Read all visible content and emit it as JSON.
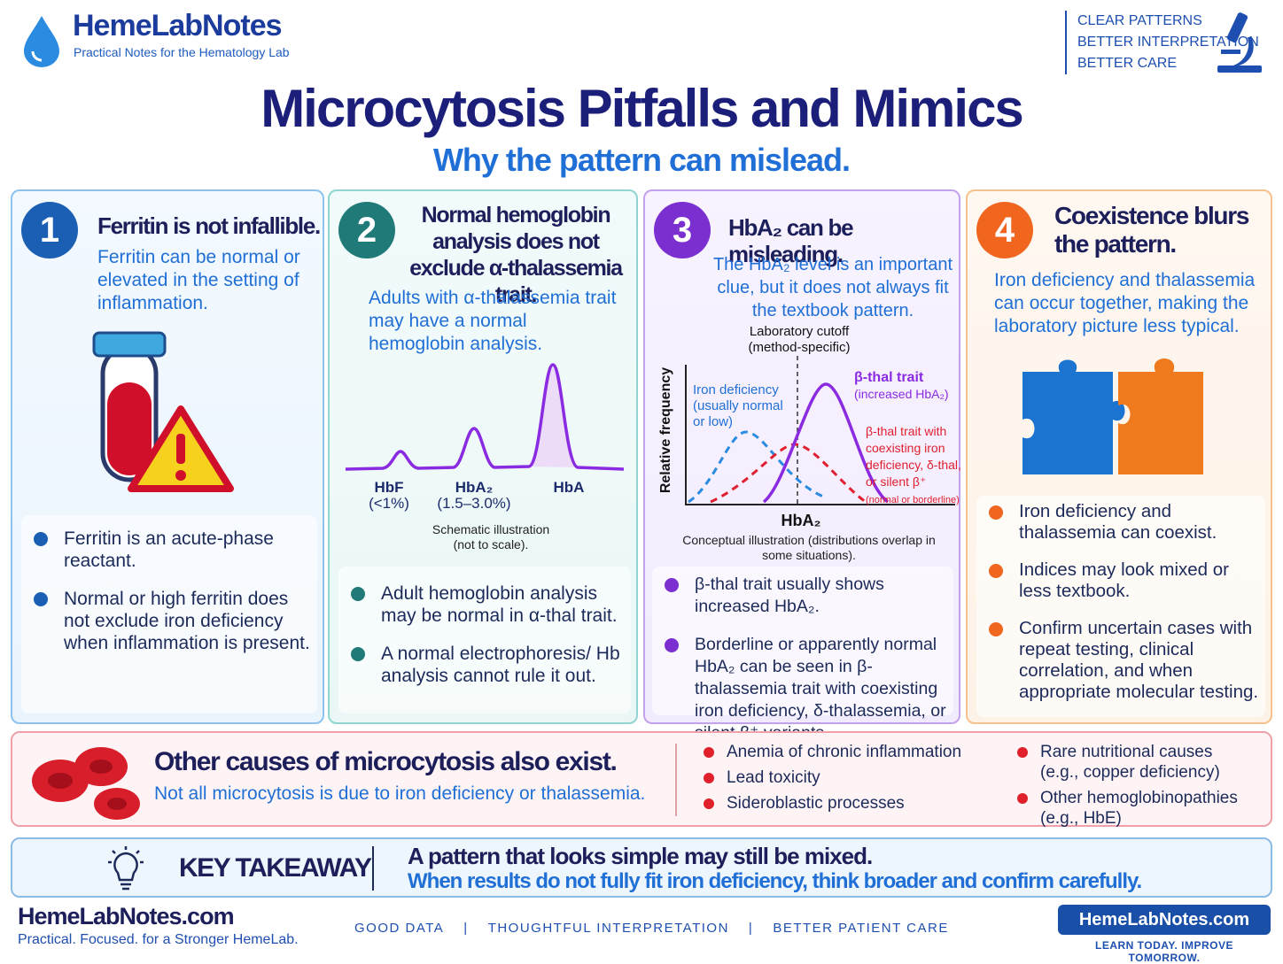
{
  "header": {
    "brand": "HemeLabNotes",
    "tagline": "Practical Notes for the Hematology Lab",
    "slogans": [
      "CLEAR PATTERNS",
      "BETTER INTERPRETATION",
      "BETTER CARE"
    ]
  },
  "title": "Microcytosis Pitfalls and Mimics",
  "subtitle": "Why the pattern can mislead.",
  "panels": [
    {
      "number": "1",
      "title": "Ferritin is not infallible.",
      "text": "Ferritin can be normal or elevated in the setting of inflammation.",
      "bullets": [
        "Ferritin is an acute-phase reactant.",
        "Normal or high ferritin does not exclude iron deficiency when inflammation is present."
      ]
    },
    {
      "number": "2",
      "title": "Normal hemoglobin analysis does not exclude α-thalassemia trait.",
      "text": "Adults with α-thalassemia trait may have a normal hemoglobin analysis.",
      "bullets": [
        "Adult hemoglobin analysis may be normal in α-thal trait.",
        "A normal electrophoresis/ Hb analysis cannot rule it out."
      ],
      "chart": {
        "peaks": [
          {
            "label": "HbF",
            "range": "(<1%)"
          },
          {
            "label": "HbA₂",
            "range": "(1.5–3.0%)"
          },
          {
            "label": "HbA"
          }
        ],
        "caption": "Schematic illustration (not to scale)."
      }
    },
    {
      "number": "3",
      "title": "HbA₂ can be misleading.",
      "text": "The HbA₂ level is an important clue, but it does not always fit the textbook pattern.",
      "bullets": [
        "β-thal trait usually shows increased HbA₂.",
        "Borderline or apparently normal HbA₂ can be seen in β-thalassemia trait with coexisting iron deficiency, δ-thalassemia, or silent β⁺ variants."
      ],
      "chart": {
        "cutoff": "Laboratory cutoff (method-specific)",
        "y_label": "Relative frequency",
        "x_label": "HbA₂",
        "iron_deficiency": "Iron deficiency (usually normal or low)",
        "beta_thal": "β-thal trait",
        "beta_thal_note": "(increased HbA₂)",
        "beta_thal_mixed": "β-thal trait with coexisting iron deficiency, δ-thal, or silent β⁺",
        "beta_thal_mixed_note": "(normal or borderline)",
        "caption": "Conceptual illustration (distributions overlap in some situations)."
      }
    },
    {
      "number": "4",
      "title": "Coexistence blurs the pattern.",
      "text": "Iron deficiency and thalassemia can occur together, making the laboratory picture less typical.",
      "bullets": [
        "Iron deficiency and thalassemia can coexist.",
        "Indices may look mixed or less textbook.",
        "Confirm uncertain cases with repeat testing, clinical correlation, and when appropriate molecular testing."
      ]
    }
  ],
  "other_causes": {
    "title": "Other causes of microcytosis also exist.",
    "text": "Not all microcytosis is due to iron deficiency or thalassemia.",
    "list_a": [
      "Anemia of chronic inflammation",
      "Lead toxicity",
      "Sideroblastic processes"
    ],
    "list_b": [
      "Rare nutritional causes (e.g., copper deficiency)",
      "Other hemoglobinopathies (e.g., HbE)"
    ]
  },
  "takeaway": {
    "label": "KEY TAKEAWAY",
    "headline": "A pattern that looks simple may still be mixed.",
    "text": "When results do not fully fit iron deficiency, think broader and confirm carefully."
  },
  "footer": {
    "brand": "HemeLabNotes.com",
    "tagline": "Practical. Focused. for a Stronger HemeLab.",
    "links": [
      "GOOD DATA",
      "THOUGHTFUL INTERPRETATION",
      "BETTER PATIENT CARE"
    ],
    "button": "HemeLabNotes.com",
    "button_tagline": "LEARN TODAY. IMPROVE TOMORROW."
  }
}
